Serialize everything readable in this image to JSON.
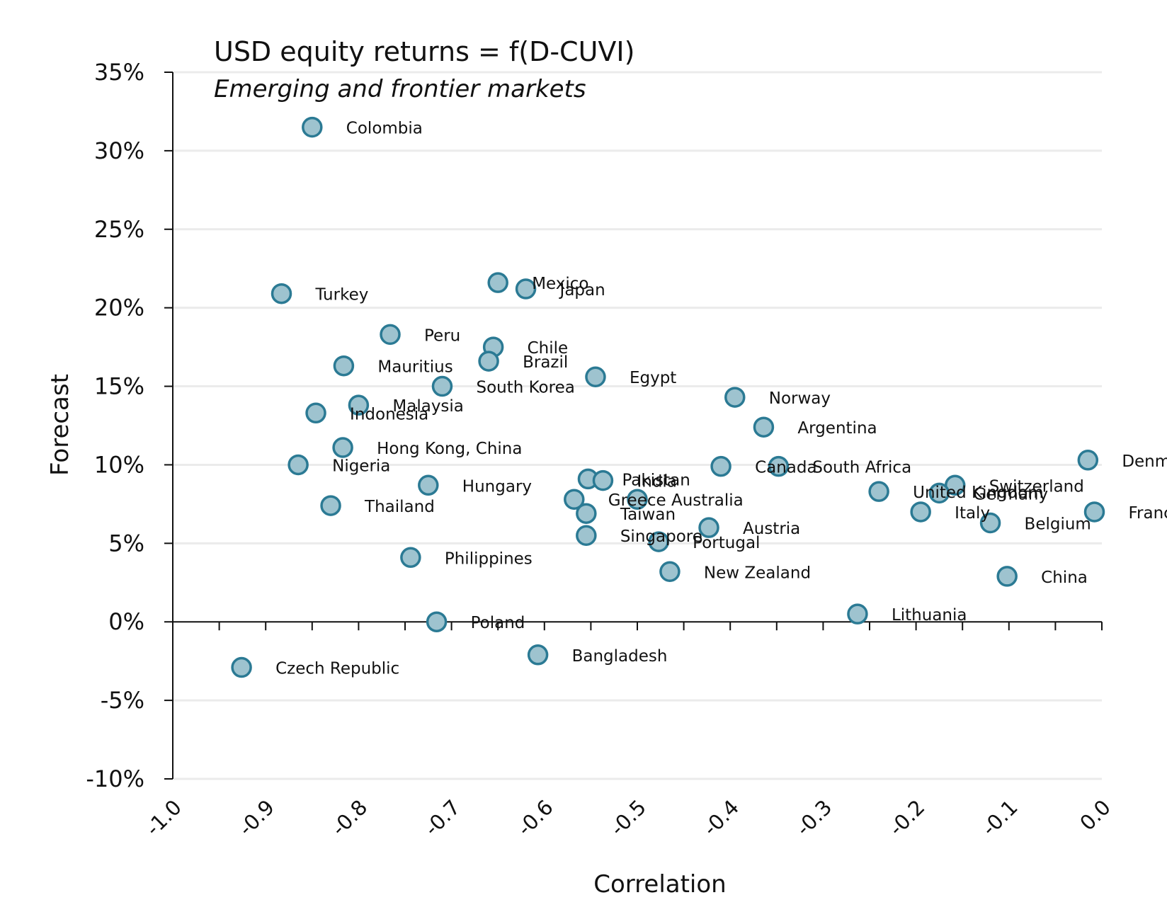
{
  "chart_data": {
    "type": "scatter",
    "title": "USD equity returns = f(D-CUVI)",
    "subtitle": "Emerging and frontier markets",
    "xlabel": "Correlation",
    "ylabel": "Forecast",
    "xlim": [
      -1.0,
      0.0
    ],
    "ylim": [
      -10,
      35
    ],
    "x_ticks": [
      "-1.0",
      "-0.9",
      "-0.8",
      "-0.7",
      "-0.6",
      "-0.5",
      "-0.4",
      "-0.3",
      "-0.2",
      "-0.1",
      "0.0"
    ],
    "y_ticks": [
      "35%",
      "30%",
      "25%",
      "20%",
      "15%",
      "10%",
      "5%",
      "0%",
      "-5%",
      "-10%"
    ],
    "grid": "horizontal",
    "legend": "none",
    "colors": {
      "marker_fill": "#9ec3cf",
      "marker_stroke": "#2b7a94",
      "grid": "#ebebeb",
      "axis": "#111111"
    },
    "points": [
      {
        "label": "Colombia",
        "x": -0.85,
        "y": 31.5
      },
      {
        "label": "Turkey",
        "x": -0.883,
        "y": 20.9
      },
      {
        "label": "Mexico",
        "x": -0.65,
        "y": 21.6
      },
      {
        "label": "Japan",
        "x": -0.62,
        "y": 21.2
      },
      {
        "label": "Peru",
        "x": -0.766,
        "y": 18.3
      },
      {
        "label": "Chile",
        "x": -0.655,
        "y": 17.5
      },
      {
        "label": "Brazil",
        "x": -0.66,
        "y": 16.6
      },
      {
        "label": "Mauritius",
        "x": -0.816,
        "y": 16.3
      },
      {
        "label": "South Korea",
        "x": -0.71,
        "y": 15.0
      },
      {
        "label": "Egypt",
        "x": -0.545,
        "y": 15.6
      },
      {
        "label": "Norway",
        "x": -0.395,
        "y": 14.3
      },
      {
        "label": "Malaysia",
        "x": -0.8,
        "y": 13.8
      },
      {
        "label": "Indonesia",
        "x": -0.846,
        "y": 13.3
      },
      {
        "label": "Argentina",
        "x": -0.364,
        "y": 12.4
      },
      {
        "label": "Hong Kong, China",
        "x": -0.817,
        "y": 11.1
      },
      {
        "label": "Denmark",
        "x": -0.015,
        "y": 10.3
      },
      {
        "label": "Nigeria",
        "x": -0.865,
        "y": 10.0
      },
      {
        "label": "Canada",
        "x": -0.41,
        "y": 9.9
      },
      {
        "label": "South Africa",
        "x": -0.348,
        "y": 9.9
      },
      {
        "label": "Pakistan",
        "x": -0.553,
        "y": 9.1
      },
      {
        "label": "India",
        "x": -0.537,
        "y": 9.0
      },
      {
        "label": "Hungary",
        "x": -0.725,
        "y": 8.7
      },
      {
        "label": "Switzerland",
        "x": -0.158,
        "y": 8.7
      },
      {
        "label": "United Kingdom",
        "x": -0.24,
        "y": 8.3
      },
      {
        "label": "Germany",
        "x": -0.175,
        "y": 8.2
      },
      {
        "label": "Greece",
        "x": -0.568,
        "y": 7.8
      },
      {
        "label": "Australia",
        "x": -0.5,
        "y": 7.8
      },
      {
        "label": "Thailand",
        "x": -0.83,
        "y": 7.4
      },
      {
        "label": "Italy",
        "x": -0.195,
        "y": 7.0
      },
      {
        "label": "France",
        "x": -0.008,
        "y": 7.0
      },
      {
        "label": "Taiwan",
        "x": -0.555,
        "y": 6.9
      },
      {
        "label": "Belgium",
        "x": -0.12,
        "y": 6.3
      },
      {
        "label": "Austria",
        "x": -0.423,
        "y": 6.0
      },
      {
        "label": "Singapore",
        "x": -0.555,
        "y": 5.5
      },
      {
        "label": "Portugal",
        "x": -0.477,
        "y": 5.1
      },
      {
        "label": "Philippines",
        "x": -0.744,
        "y": 4.1
      },
      {
        "label": "New Zealand",
        "x": -0.465,
        "y": 3.2
      },
      {
        "label": "China",
        "x": -0.102,
        "y": 2.9
      },
      {
        "label": "Lithuania",
        "x": -0.263,
        "y": 0.5
      },
      {
        "label": "Poland",
        "x": -0.716,
        "y": 0.0
      },
      {
        "label": "Bangladesh",
        "x": -0.607,
        "y": -2.1
      },
      {
        "label": "Czech Republic",
        "x": -0.926,
        "y": -2.9
      }
    ]
  }
}
